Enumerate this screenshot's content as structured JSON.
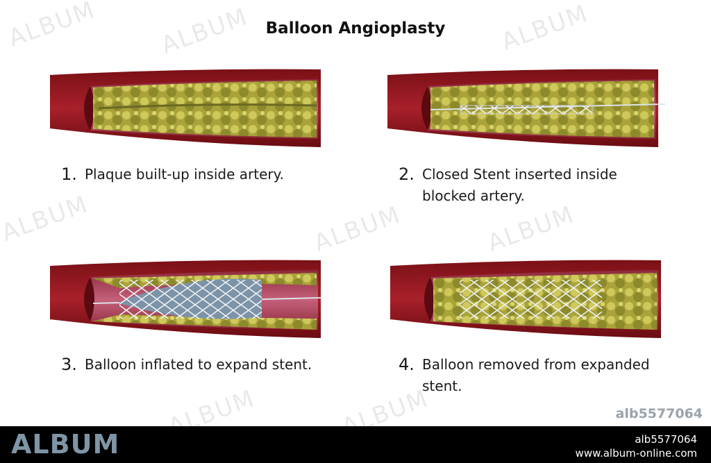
{
  "title": "Balloon Angioplasty",
  "steps": [
    {
      "number": "1.",
      "text": "Plaque built-up inside artery."
    },
    {
      "number": "2.",
      "text": "Closed Stent inserted inside blocked artery."
    },
    {
      "number": "3.",
      "text": "Balloon inflated to expand stent."
    },
    {
      "number": "4.",
      "text": "Balloon removed from expanded stent."
    }
  ],
  "watermark": "ALBUM",
  "image_id": "alb5577064",
  "footer": {
    "brand": "ALBUM",
    "image_id": "alb5577064",
    "url": "www.album-online.com"
  }
}
